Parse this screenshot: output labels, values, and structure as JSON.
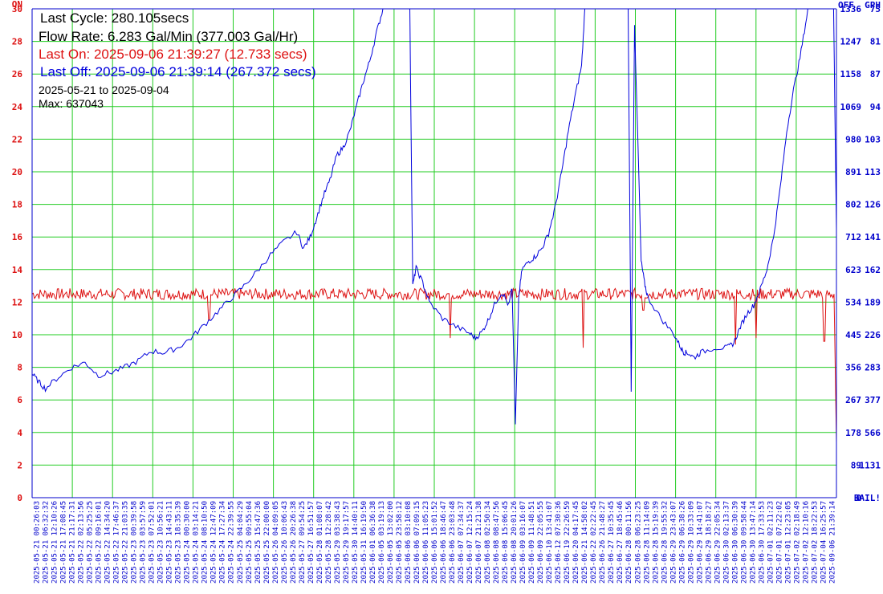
{
  "info": {
    "last_cycle": "Last Cycle: 280.105secs",
    "flow_rate": "Flow Rate: 6.283 Gal/Min (377.003 Gal/Hr)",
    "last_on": "Last On: 2025-09-06 21:39:27 (12.733 secs)",
    "last_off": "Last Off: 2025-09-06 21:39:14 (267.372 secs)",
    "date_range": "2025-05-21 to 2025-09-04",
    "max": "Max: 637043"
  },
  "colors": {
    "grid": "#22cc22",
    "axis": "#0000cc",
    "on_series": "#dd1111",
    "off_series": "#0000dd",
    "text_black": "#000000"
  },
  "chart_data": {
    "type": "line",
    "left_axis": {
      "unit_label": "ON",
      "range": [
        0,
        30
      ],
      "ticks": [
        0,
        2,
        4,
        6,
        8,
        10,
        12,
        14,
        16,
        18,
        20,
        22,
        24,
        26,
        28,
        30
      ]
    },
    "right_axis_off": {
      "unit_label": "OFF",
      "range": [
        0,
        1336
      ],
      "ticks": [
        "0",
        "89",
        "178",
        "267",
        "356",
        "445",
        "534",
        "623",
        "712",
        "802",
        "891",
        "980",
        "1069",
        "1158",
        "1247",
        "1336"
      ]
    },
    "right_axis_gph": {
      "unit_label": "GPH",
      "ticks": [
        "BAIL!",
        "1131",
        "566",
        "377",
        "283",
        "226",
        "189",
        "162",
        "141",
        "126",
        "113",
        "103",
        "94",
        "87",
        "81",
        "75"
      ]
    },
    "x_tick_labels": [
      "2025-05-21 00:26:03",
      "2025-05-21 06:32:32",
      "2025-05-21 12:10:26",
      "2025-05-21 17:08:45",
      "2025-05-21 21:17:31",
      "2025-05-22 02:13:56",
      "2025-05-22 05:25:25",
      "2025-05-22 09:16:01",
      "2025-05-22 14:34:20",
      "2025-05-22 17:46:37",
      "2025-05-22 21:03:35",
      "2025-05-23 00:39:58",
      "2025-05-23 03:57:59",
      "2025-05-23 07:52:01",
      "2025-05-23 10:56:21",
      "2025-05-23 14:43:11",
      "2025-05-23 18:35:39",
      "2025-05-24 00:30:00",
      "2025-05-24 03:14:21",
      "2025-05-24 08:10:50",
      "2025-05-24 12:47:09",
      "2025-05-24 17:27:34",
      "2025-05-24 22:39:55",
      "2025-05-25 04:04:29",
      "2025-05-25 09:55:04",
      "2025-05-25 15:47:36",
      "2025-05-25 22:00:00",
      "2025-05-26 04:09:05",
      "2025-05-26 10:06:43",
      "2025-05-26 20:26:38",
      "2025-05-27 09:54:25",
      "2025-05-27 16:51:57",
      "2025-05-28 01:08:07",
      "2025-05-28 12:28:42",
      "2025-05-29 03:38:43",
      "2025-05-29 19:17:57",
      "2025-05-30 14:40:11",
      "2025-05-31 16:19:50",
      "2025-06-01 06:36:38",
      "2025-06-05 03:19:13",
      "2025-06-05 13:02:00",
      "2025-06-05 23:58:12",
      "2025-06-06 03:10:08",
      "2025-06-06 07:09:15",
      "2025-06-06 11:05:23",
      "2025-06-06 15:01:52",
      "2025-06-06 18:46:47",
      "2025-06-06 23:03:48",
      "2025-06-07 07:34:37",
      "2025-06-07 12:15:24",
      "2025-06-07 21:21:38",
      "2025-06-08 02:50:34",
      "2025-06-08 08:47:56",
      "2025-06-08 15:06:45",
      "2025-06-08 20:01:26",
      "2025-06-09 03:16:07",
      "2025-06-09 11:48:51",
      "2025-06-09 22:05:55",
      "2025-06-10 13:41:07",
      "2025-06-12 07:30:36",
      "2025-06-19 22:26:59",
      "2025-06-20 04:17:45",
      "2025-06-21 14:58:02",
      "2025-06-22 02:22:45",
      "2025-06-26 21:48:27",
      "2025-06-27 10:35:45",
      "2025-06-27 18:45:46",
      "2025-06-28 00:11:56",
      "2025-06-28 06:23:25",
      "2025-06-28 11:14:09",
      "2025-06-28 15:19:39",
      "2025-06-28 19:55:32",
      "2025-06-29 23:43:07",
      "2025-06-29 06:38:26",
      "2025-06-29 10:33:09",
      "2025-06-29 14:41:07",
      "2025-06-29 18:18:27",
      "2025-06-29 22:05:34",
      "2025-06-30 02:13:37",
      "2025-06-30 06:30:39",
      "2025-06-30 09:58:44",
      "2025-06-30 13:47:14",
      "2025-06-30 17:33:53",
      "2025-07-01 02:11:23",
      "2025-07-01 07:22:02",
      "2025-07-01 12:23:05",
      "2025-07-02 02:18:49",
      "2025-07-02 12:10:16",
      "2025-07-02 18:22:53",
      "2025-07-04 16:25:57",
      "2025-09-06 21:39:14"
    ],
    "series": [
      {
        "name": "ON",
        "axis": "left",
        "baseline": 12.5,
        "noise": 0.35,
        "dips": [
          [
            0.22,
            10.9
          ],
          [
            0.52,
            9.8
          ],
          [
            0.685,
            9.2
          ],
          [
            0.76,
            11.5
          ],
          [
            0.875,
            9.4
          ],
          [
            0.9,
            9.8
          ],
          [
            0.985,
            9.6
          ]
        ],
        "end": [
          [
            0.997,
            12.5
          ],
          [
            1.0,
            3.4
          ]
        ]
      },
      {
        "name": "OFF",
        "axis": "left",
        "points": [
          [
            0.0,
            7.6
          ],
          [
            0.01,
            7.1
          ],
          [
            0.02,
            6.7
          ],
          [
            0.04,
            7.4
          ],
          [
            0.06,
            8.0
          ],
          [
            0.08,
            8.3
          ],
          [
            0.1,
            7.5
          ],
          [
            0.12,
            7.7
          ],
          [
            0.14,
            8.0
          ],
          [
            0.16,
            8.4
          ],
          [
            0.18,
            9.0
          ],
          [
            0.2,
            8.9
          ],
          [
            0.22,
            9.2
          ],
          [
            0.24,
            9.8
          ],
          [
            0.26,
            10.6
          ],
          [
            0.28,
            11.4
          ],
          [
            0.3,
            12.2
          ],
          [
            0.32,
            13.0
          ],
          [
            0.34,
            13.9
          ],
          [
            0.36,
            14.9
          ],
          [
            0.38,
            15.7
          ],
          [
            0.4,
            16.3
          ],
          [
            0.41,
            15.3
          ],
          [
            0.42,
            16.0
          ],
          [
            0.43,
            17.2
          ],
          [
            0.44,
            18.5
          ],
          [
            0.45,
            19.5
          ],
          [
            0.46,
            21.0
          ],
          [
            0.47,
            21.5
          ],
          [
            0.48,
            22.5
          ],
          [
            0.49,
            24.0
          ],
          [
            0.5,
            25.5
          ],
          [
            0.51,
            26.8
          ],
          [
            0.52,
            28.5
          ],
          [
            0.53,
            30.0
          ],
          [
            0.545,
            32.0
          ],
          [
            0.57,
            32.0
          ],
          [
            0.575,
            13.0
          ],
          [
            0.58,
            14.1
          ],
          [
            0.59,
            13.2
          ],
          [
            0.6,
            12.0
          ],
          [
            0.62,
            11.0
          ],
          [
            0.64,
            10.5
          ],
          [
            0.66,
            10.1
          ],
          [
            0.67,
            9.8
          ],
          [
            0.68,
            10.2
          ],
          [
            0.69,
            11.0
          ],
          [
            0.7,
            12.0
          ],
          [
            0.71,
            12.6
          ],
          [
            0.72,
            11.8
          ],
          [
            0.725,
            12.8
          ],
          [
            0.73,
            4.5
          ],
          [
            0.735,
            12.3
          ],
          [
            0.74,
            14.0
          ],
          [
            0.75,
            14.5
          ],
          [
            0.76,
            14.8
          ],
          [
            0.77,
            15.3
          ],
          [
            0.78,
            16.2
          ],
          [
            0.79,
            17.8
          ],
          [
            0.8,
            20.0
          ],
          [
            0.81,
            22.5
          ],
          [
            0.82,
            24.6
          ],
          [
            0.83,
            26.5
          ],
          [
            0.835,
            30.0
          ],
          [
            0.84,
            32.0
          ],
          [
            0.9,
            32.0
          ],
          [
            0.905,
            6.5
          ],
          [
            0.91,
            29.0
          ],
          [
            0.915,
            22.0
          ],
          [
            0.92,
            14.5
          ],
          [
            0.925,
            13.2
          ],
          [
            0.93,
            12.3
          ],
          [
            0.95,
            11.0
          ],
          [
            0.97,
            10.0
          ],
          [
            0.98,
            9.2
          ],
          [
            0.985,
            8.9
          ],
          [
            0.99,
            8.9
          ],
          [
            1.0,
            8.6
          ],
          [
            1.01,
            8.9
          ],
          [
            1.03,
            9.2
          ],
          [
            1.05,
            9.2
          ],
          [
            1.06,
            9.5
          ],
          [
            1.07,
            10.5
          ],
          [
            1.08,
            11.3
          ],
          [
            1.09,
            11.8
          ],
          [
            1.1,
            12.8
          ],
          [
            1.11,
            14.0
          ],
          [
            1.12,
            16.0
          ],
          [
            1.13,
            19.0
          ],
          [
            1.14,
            22.5
          ],
          [
            1.15,
            25.0
          ],
          [
            1.16,
            27.0
          ],
          [
            1.17,
            29.5
          ],
          [
            1.18,
            32.0
          ],
          [
            1.21,
            32.0
          ],
          [
            1.215,
            16.5
          ]
        ]
      }
    ],
    "grid": true,
    "legend": "none"
  }
}
